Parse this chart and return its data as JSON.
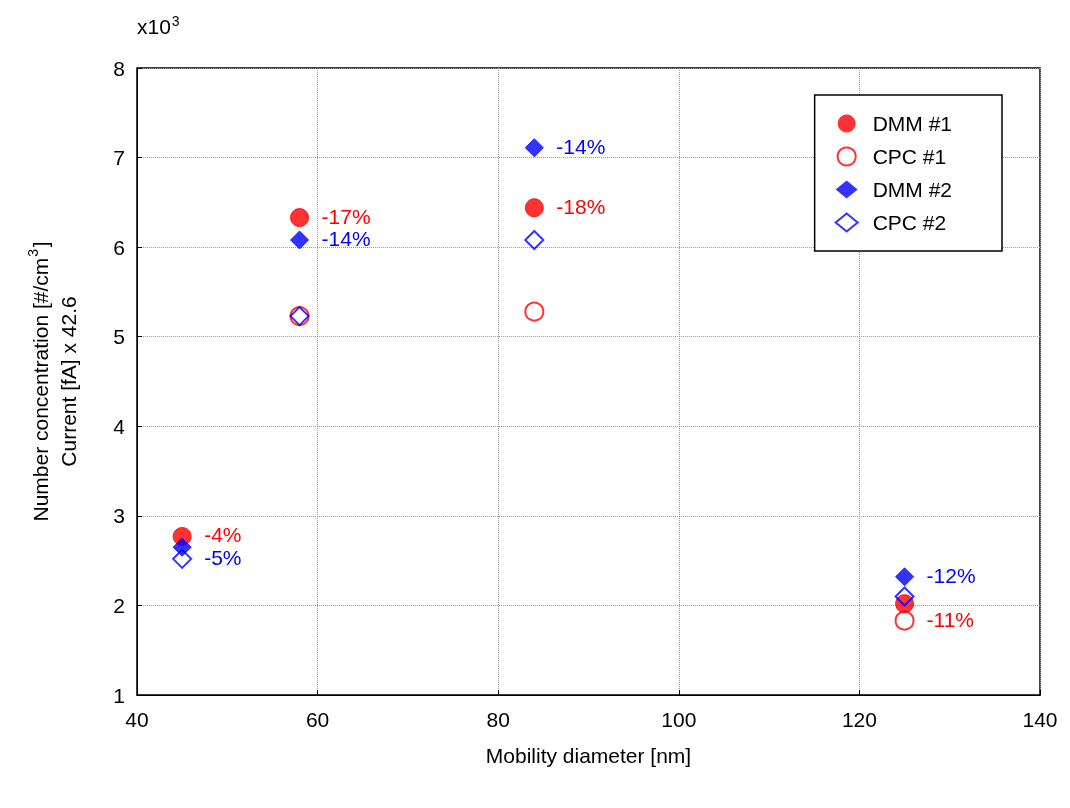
{
  "chart_data": {
    "type": "scatter",
    "xlabel": "Mobility diameter [nm]",
    "ylabel": "Number concentration [#/cm$^{3}$]\nCurrent [fA] x 42.6",
    "x": [
      45,
      58,
      84,
      125
    ],
    "series": [
      {
        "name": "DMM #1",
        "color": "#ff0000",
        "marker": "circle",
        "values": [
          2.77,
          6.33,
          6.44,
          2.02
        ]
      },
      {
        "name": "CPC #1",
        "color": "#ff0000",
        "marker": "circle",
        "values": [
          null,
          5.23,
          5.28,
          1.83
        ]
      },
      {
        "name": "DMM #2",
        "color": "#0000ff",
        "marker": "diamond",
        "values": [
          2.65,
          6.08,
          7.11,
          2.32
        ]
      },
      {
        "name": "CPC #2",
        "color": "#0000ff",
        "marker": "diamond",
        "values": [
          2.52,
          5.23,
          6.08,
          2.1
        ]
      }
    ],
    "xlim": [
      40,
      140
    ],
    "xticks": [
      40,
      60,
      80,
      100,
      120,
      140
    ],
    "ylim": [
      1,
      8
    ],
    "yticks": [
      1,
      2,
      3,
      4,
      5,
      6,
      7,
      8
    ],
    "grid": true,
    "legend": "top right",
    "annotations": [
      "x10$^{3}$",
      {
        "text": "-4%",
        "x": 45,
        "y": 2.77
      },
      {
        "text": "-5%",
        "x": 45,
        "y": 2.52
      },
      {
        "text": "-17%",
        "x": 58,
        "y": 6.33
      },
      {
        "text": "-14%",
        "x": 58,
        "y": 6.08
      },
      {
        "text": "-14%",
        "x": 84,
        "y": 7.11
      },
      {
        "text": "-18%",
        "x": 84,
        "y": 6.44
      },
      {
        "text": "-12%",
        "x": 125,
        "y": 2.32
      },
      {
        "text": "-11%",
        "x": 125,
        "y": 1.83
      }
    ]
  }
}
